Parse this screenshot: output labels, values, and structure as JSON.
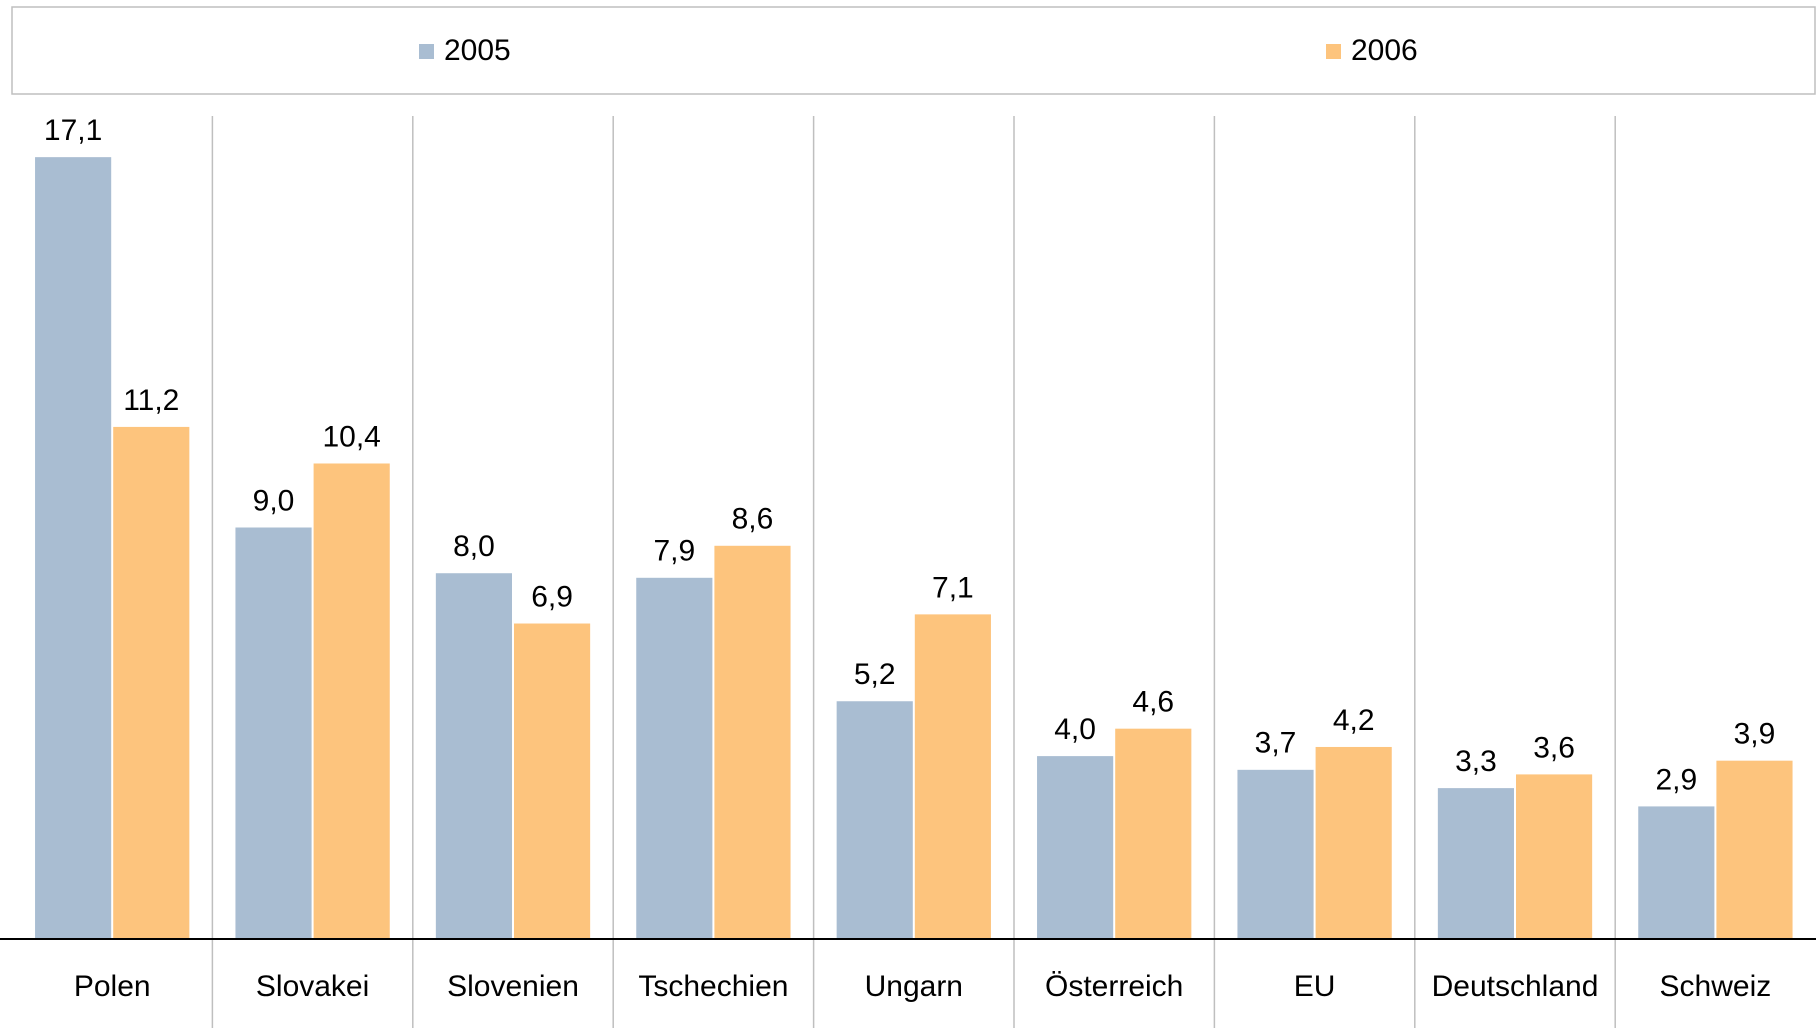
{
  "chart_data": {
    "type": "bar",
    "categories": [
      "Polen",
      "Slovakei",
      "Slovenien",
      "Tschechien",
      "Ungarn",
      "Österreich",
      "EU",
      "Deutschland",
      "Schweiz"
    ],
    "series": [
      {
        "name": "2005",
        "color": "#a9bdd2",
        "values": [
          17.1,
          9.0,
          8.0,
          7.9,
          5.2,
          4.0,
          3.7,
          3.3,
          2.9
        ],
        "value_labels": [
          "17,1",
          "9,0",
          "8,0",
          "7,9",
          "5,2",
          "4,0",
          "3,7",
          "3,3",
          "2,9"
        ]
      },
      {
        "name": "2006",
        "color": "#fdc47d",
        "values": [
          11.2,
          10.4,
          6.9,
          8.6,
          7.1,
          4.6,
          4.2,
          3.6,
          3.9
        ],
        "value_labels": [
          "11,2",
          "10,4",
          "6,9",
          "8,6",
          "7,1",
          "4,6",
          "4,2",
          "3,6",
          "3,9"
        ]
      }
    ],
    "ylim": [
      0,
      18
    ],
    "legend": "top"
  }
}
